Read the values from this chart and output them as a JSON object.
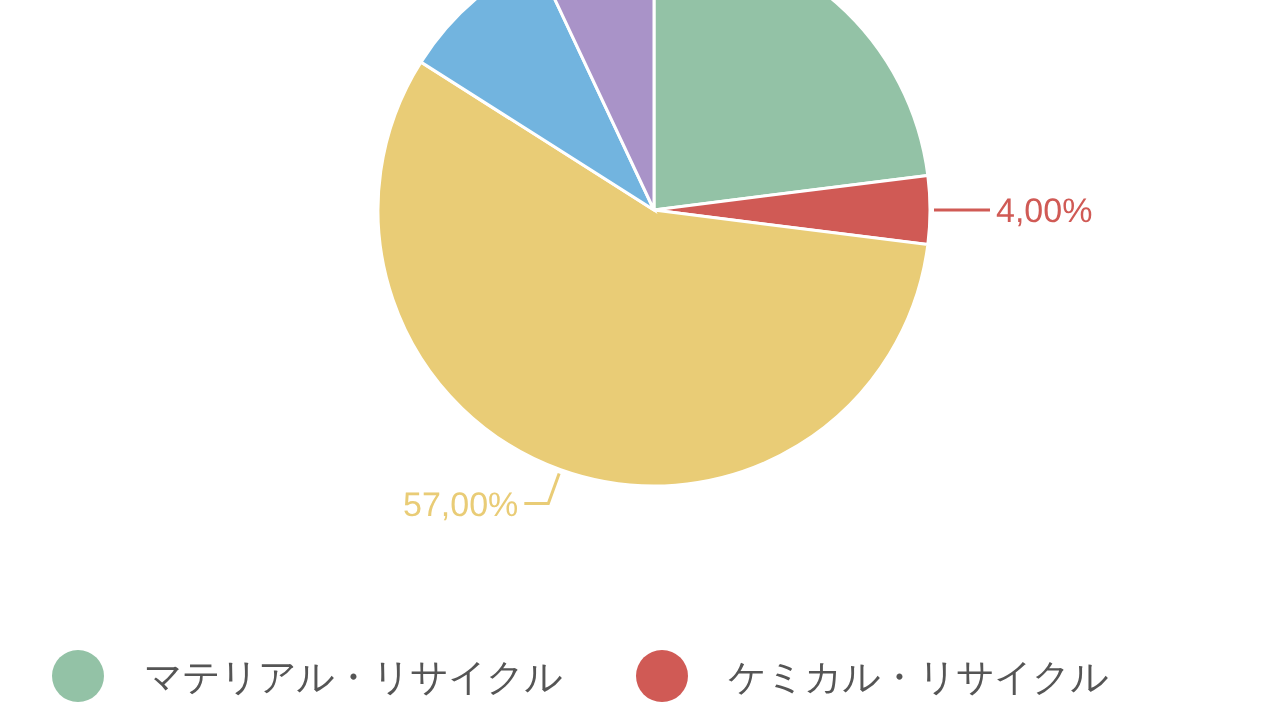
{
  "chart_data": {
    "type": "pie",
    "categories": [
      "マテリアル・リサイクル",
      "ケミカル・リサイクル",
      null,
      null,
      null
    ],
    "values": [
      23,
      4,
      57,
      9,
      7
    ],
    "colors": [
      "#93c2a6",
      "#d05a55",
      "#e9cc76",
      "#72b4df",
      "#a993c8"
    ],
    "value_labels": [
      null,
      "4,00%",
      "57,00%",
      null,
      null
    ],
    "legend": "bottom"
  }
}
